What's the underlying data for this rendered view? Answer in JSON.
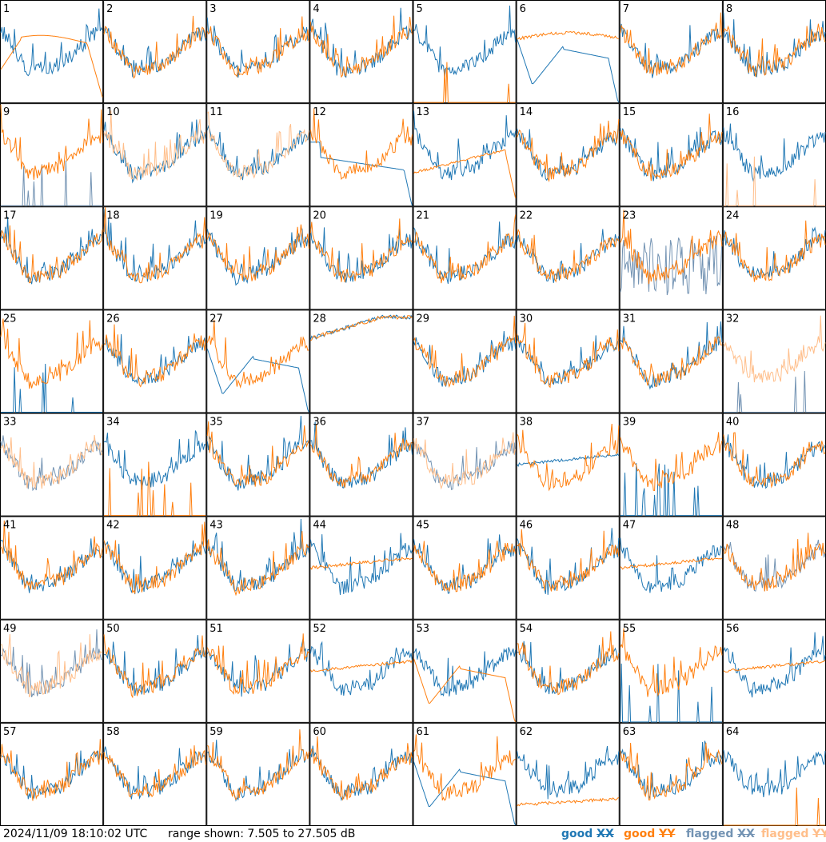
{
  "footer": {
    "timestamp": "2024/11/09 18:10:02 UTC",
    "range": "range shown: 7.505 to 27.505 dB"
  },
  "legend": [
    {
      "state": "good",
      "pol": "XX",
      "color": "#1f77b4"
    },
    {
      "state": "good",
      "pol": "YY",
      "color": "#ff7f0e"
    },
    {
      "state": "flagged",
      "pol": "XX",
      "color": "#7393b3"
    },
    {
      "state": "flagged",
      "pol": "YY",
      "color": "#ffbe8a"
    }
  ],
  "chart_data": {
    "type": "line",
    "title": "",
    "ylim": [
      7.505,
      27.505
    ],
    "yunit": "dB",
    "xlabel": "",
    "ylabel": "",
    "grid": false,
    "layout": "8 x 8 small multiples",
    "series_note": "each panel shows an XX and a YY spectrum (power in dB vs. frequency channel); values are approximate visual estimates",
    "panels": [
      {
        "id": "1",
        "xx": "good",
        "yy": "good",
        "xx_shape": "bowl",
        "yy_shape": "hump_droop"
      },
      {
        "id": "2",
        "xx": "good",
        "yy": "good",
        "xx_shape": "bowl",
        "yy_shape": "bowl"
      },
      {
        "id": "3",
        "xx": "good",
        "yy": "good",
        "xx_shape": "bowl",
        "yy_shape": "bowl"
      },
      {
        "id": "4",
        "xx": "good",
        "yy": "good",
        "xx_shape": "bowl",
        "yy_shape": "bowl"
      },
      {
        "id": "5",
        "xx": "good",
        "yy": "good",
        "xx_shape": "bowl",
        "yy_shape": "spikes"
      },
      {
        "id": "6",
        "xx": "good",
        "yy": "good",
        "xx_shape": "dip_drop",
        "yy_shape": "hump"
      },
      {
        "id": "7",
        "xx": "good",
        "yy": "good",
        "xx_shape": "bowl",
        "yy_shape": "bowl"
      },
      {
        "id": "8",
        "xx": "good",
        "yy": "good",
        "xx_shape": "bowl",
        "yy_shape": "bowl"
      },
      {
        "id": "9",
        "xx": "flagged",
        "yy": "good",
        "xx_shape": "spikes",
        "yy_shape": "bowl"
      },
      {
        "id": "10",
        "xx": "good",
        "yy": "flagged",
        "xx_shape": "bowl",
        "yy_shape": "bowl"
      },
      {
        "id": "11",
        "xx": "good",
        "yy": "flagged",
        "xx_shape": "bowl",
        "yy_shape": "bowl"
      },
      {
        "id": "12",
        "xx": "good",
        "yy": "good",
        "xx_shape": "droop",
        "yy_shape": "bowl"
      },
      {
        "id": "13",
        "xx": "good",
        "yy": "good",
        "xx_shape": "bowl",
        "yy_shape": "flat_drop"
      },
      {
        "id": "14",
        "xx": "good",
        "yy": "good",
        "xx_shape": "bowl",
        "yy_shape": "bowl"
      },
      {
        "id": "15",
        "xx": "good",
        "yy": "good",
        "xx_shape": "bowl",
        "yy_shape": "bowl"
      },
      {
        "id": "16",
        "xx": "good",
        "yy": "flagged",
        "xx_shape": "bowl",
        "yy_shape": "spikes"
      },
      {
        "id": "17",
        "xx": "good",
        "yy": "good",
        "xx_shape": "bowl",
        "yy_shape": "bowl"
      },
      {
        "id": "18",
        "xx": "good",
        "yy": "good",
        "xx_shape": "bowl",
        "yy_shape": "bowl"
      },
      {
        "id": "19",
        "xx": "good",
        "yy": "good",
        "xx_shape": "bowl",
        "yy_shape": "bowl"
      },
      {
        "id": "20",
        "xx": "good",
        "yy": "good",
        "xx_shape": "bowl",
        "yy_shape": "bowl"
      },
      {
        "id": "21",
        "xx": "good",
        "yy": "good",
        "xx_shape": "bowl",
        "yy_shape": "bowl"
      },
      {
        "id": "22",
        "xx": "good",
        "yy": "good",
        "xx_shape": "bowl",
        "yy_shape": "bowl"
      },
      {
        "id": "23",
        "xx": "flagged",
        "yy": "good",
        "xx_shape": "noisy_low",
        "yy_shape": "bowl"
      },
      {
        "id": "24",
        "xx": "good",
        "yy": "good",
        "xx_shape": "bowl",
        "yy_shape": "bowl"
      },
      {
        "id": "25",
        "xx": "good",
        "yy": "good",
        "xx_shape": "spikes",
        "yy_shape": "bowl"
      },
      {
        "id": "26",
        "xx": "good",
        "yy": "good",
        "xx_shape": "bowl",
        "yy_shape": "bowl"
      },
      {
        "id": "27",
        "xx": "good",
        "yy": "good",
        "xx_shape": "dip_drop",
        "yy_shape": "bowl"
      },
      {
        "id": "28",
        "xx": "good",
        "yy": "good",
        "xx_shape": "rising_flat",
        "yy_shape": "rising_flat"
      },
      {
        "id": "29",
        "xx": "good",
        "yy": "good",
        "xx_shape": "bowl",
        "yy_shape": "bowl"
      },
      {
        "id": "30",
        "xx": "good",
        "yy": "good",
        "xx_shape": "bowl",
        "yy_shape": "bowl"
      },
      {
        "id": "31",
        "xx": "good",
        "yy": "good",
        "xx_shape": "bowl",
        "yy_shape": "bowl"
      },
      {
        "id": "32",
        "xx": "flagged",
        "yy": "flagged",
        "xx_shape": "spikes",
        "yy_shape": "bowl"
      },
      {
        "id": "33",
        "xx": "flagged",
        "yy": "flagged",
        "xx_shape": "bowl",
        "yy_shape": "bowl"
      },
      {
        "id": "34",
        "xx": "good",
        "yy": "good",
        "xx_shape": "bowl",
        "yy_shape": "spikes"
      },
      {
        "id": "35",
        "xx": "good",
        "yy": "good",
        "xx_shape": "bowl",
        "yy_shape": "bowl"
      },
      {
        "id": "36",
        "xx": "good",
        "yy": "good",
        "xx_shape": "bowl",
        "yy_shape": "bowl"
      },
      {
        "id": "37",
        "xx": "flagged",
        "yy": "flagged",
        "xx_shape": "bowl",
        "yy_shape": "bowl"
      },
      {
        "id": "38",
        "xx": "good",
        "yy": "good",
        "xx_shape": "flat",
        "yy_shape": "bowl"
      },
      {
        "id": "39",
        "xx": "good",
        "yy": "good",
        "xx_shape": "spikes",
        "yy_shape": "bowl"
      },
      {
        "id": "40",
        "xx": "good",
        "yy": "good",
        "xx_shape": "bowl",
        "yy_shape": "bowl"
      },
      {
        "id": "41",
        "xx": "good",
        "yy": "good",
        "xx_shape": "bowl",
        "yy_shape": "bowl"
      },
      {
        "id": "42",
        "xx": "good",
        "yy": "good",
        "xx_shape": "bowl",
        "yy_shape": "bowl"
      },
      {
        "id": "43",
        "xx": "good",
        "yy": "good",
        "xx_shape": "bowl",
        "yy_shape": "bowl"
      },
      {
        "id": "44",
        "xx": "good",
        "yy": "good",
        "xx_shape": "bowl",
        "yy_shape": "flat"
      },
      {
        "id": "45",
        "xx": "good",
        "yy": "good",
        "xx_shape": "bowl",
        "yy_shape": "bowl"
      },
      {
        "id": "46",
        "xx": "good",
        "yy": "good",
        "xx_shape": "bowl",
        "yy_shape": "bowl"
      },
      {
        "id": "47",
        "xx": "good",
        "yy": "good",
        "xx_shape": "bowl",
        "yy_shape": "flat"
      },
      {
        "id": "48",
        "xx": "flagged",
        "yy": "good",
        "xx_shape": "bowl",
        "yy_shape": "bowl"
      },
      {
        "id": "49",
        "xx": "flagged",
        "yy": "flagged",
        "xx_shape": "bowl",
        "yy_shape": "bowl"
      },
      {
        "id": "50",
        "xx": "good",
        "yy": "good",
        "xx_shape": "bowl",
        "yy_shape": "bowl"
      },
      {
        "id": "51",
        "xx": "good",
        "yy": "good",
        "xx_shape": "bowl",
        "yy_shape": "bowl"
      },
      {
        "id": "52",
        "xx": "good",
        "yy": "good",
        "xx_shape": "bowl",
        "yy_shape": "flat"
      },
      {
        "id": "53",
        "xx": "good",
        "yy": "good",
        "xx_shape": "bowl",
        "yy_shape": "dip_drop"
      },
      {
        "id": "54",
        "xx": "good",
        "yy": "good",
        "xx_shape": "bowl",
        "yy_shape": "bowl"
      },
      {
        "id": "55",
        "xx": "good",
        "yy": "good",
        "xx_shape": "spikes",
        "yy_shape": "bowl"
      },
      {
        "id": "56",
        "xx": "good",
        "yy": "good",
        "xx_shape": "bowl",
        "yy_shape": "flat"
      },
      {
        "id": "57",
        "xx": "good",
        "yy": "good",
        "xx_shape": "bowl",
        "yy_shape": "bowl"
      },
      {
        "id": "58",
        "xx": "good",
        "yy": "good",
        "xx_shape": "bowl",
        "yy_shape": "bowl"
      },
      {
        "id": "59",
        "xx": "good",
        "yy": "good",
        "xx_shape": "bowl",
        "yy_shape": "bowl"
      },
      {
        "id": "60",
        "xx": "good",
        "yy": "good",
        "xx_shape": "bowl",
        "yy_shape": "bowl"
      },
      {
        "id": "61",
        "xx": "good",
        "yy": "good",
        "xx_shape": "dip_drop",
        "yy_shape": "bowl"
      },
      {
        "id": "62",
        "xx": "good",
        "yy": "good",
        "xx_shape": "bowl",
        "yy_shape": "low_flat"
      },
      {
        "id": "63",
        "xx": "good",
        "yy": "good",
        "xx_shape": "bowl",
        "yy_shape": "bowl"
      },
      {
        "id": "64",
        "xx": "good",
        "yy": "good",
        "xx_shape": "bowl",
        "yy_shape": "spikes"
      }
    ]
  }
}
